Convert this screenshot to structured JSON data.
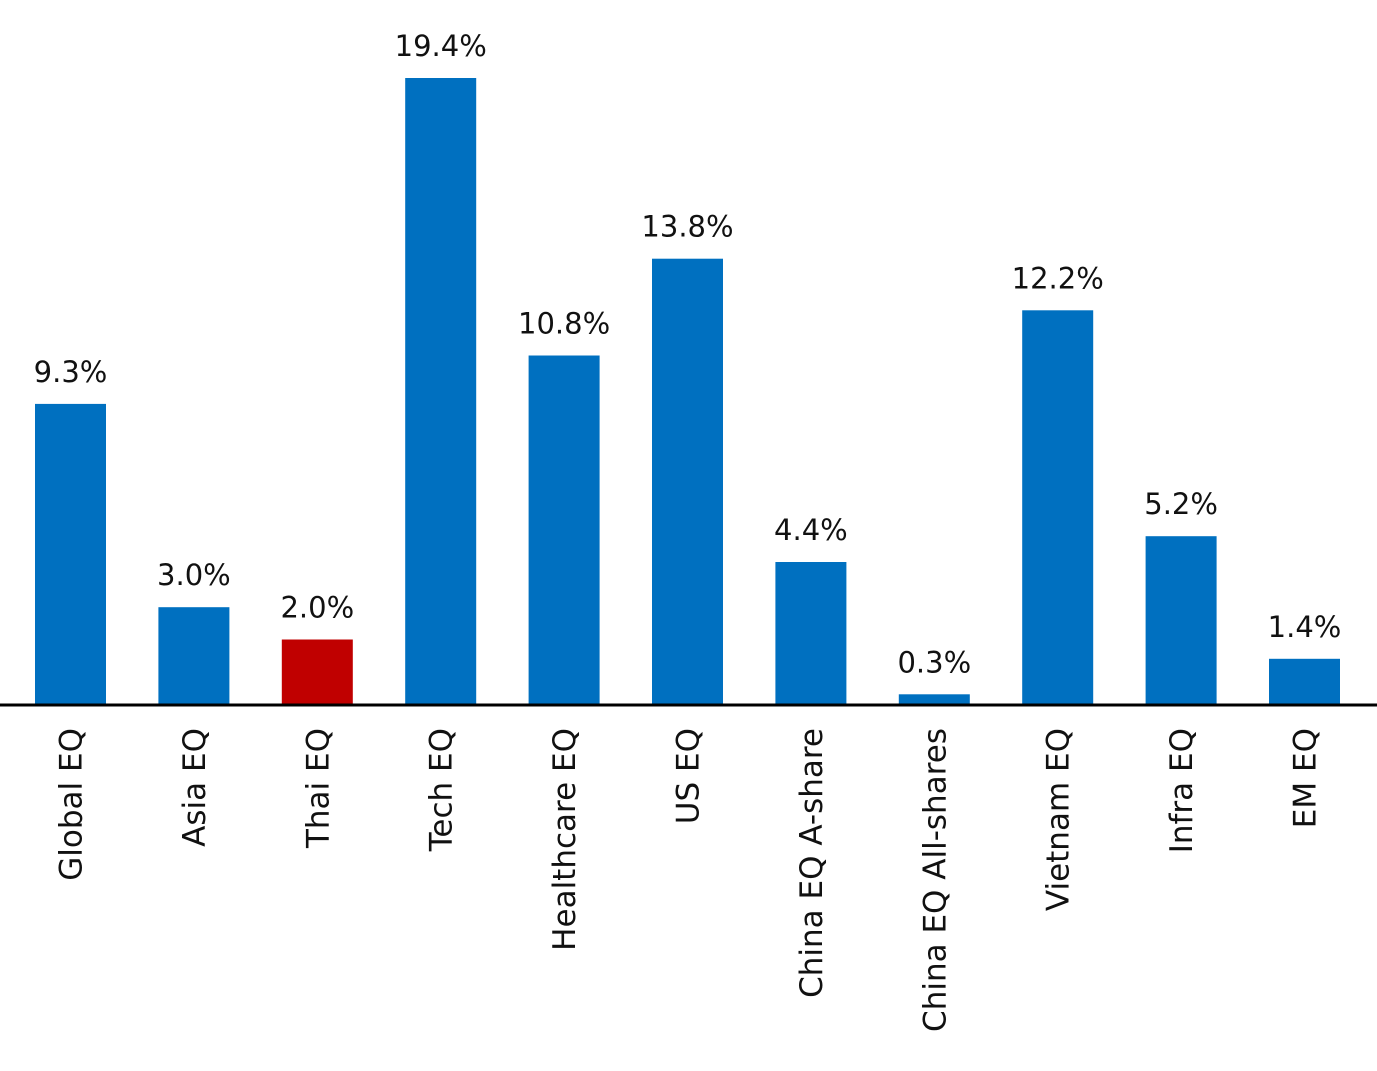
{
  "chart_data": {
    "type": "bar",
    "categories": [
      "Global EQ",
      "Asia EQ",
      "Thai EQ",
      "Tech EQ",
      "Healthcare EQ",
      "US EQ",
      "China EQ A-share",
      "China EQ All-shares",
      "Vietnam EQ",
      "Infra EQ",
      "EM EQ"
    ],
    "values": [
      9.3,
      3.0,
      2.0,
      19.4,
      10.8,
      13.8,
      4.4,
      0.3,
      12.2,
      5.2,
      1.4
    ],
    "value_labels": [
      "9.3%",
      "3.0%",
      "2.0%",
      "19.4%",
      "10.8%",
      "13.8%",
      "4.4%",
      "0.3%",
      "12.2%",
      "5.2%",
      "1.4%"
    ],
    "title": "",
    "xlabel": "",
    "ylabel": "",
    "ylim": [
      0,
      20
    ],
    "grid": false,
    "legend": "none",
    "colors": {
      "default": "#0070C0",
      "highlight": "#C00000",
      "axis": "#000000"
    },
    "highlight_category": "Thai EQ"
  }
}
